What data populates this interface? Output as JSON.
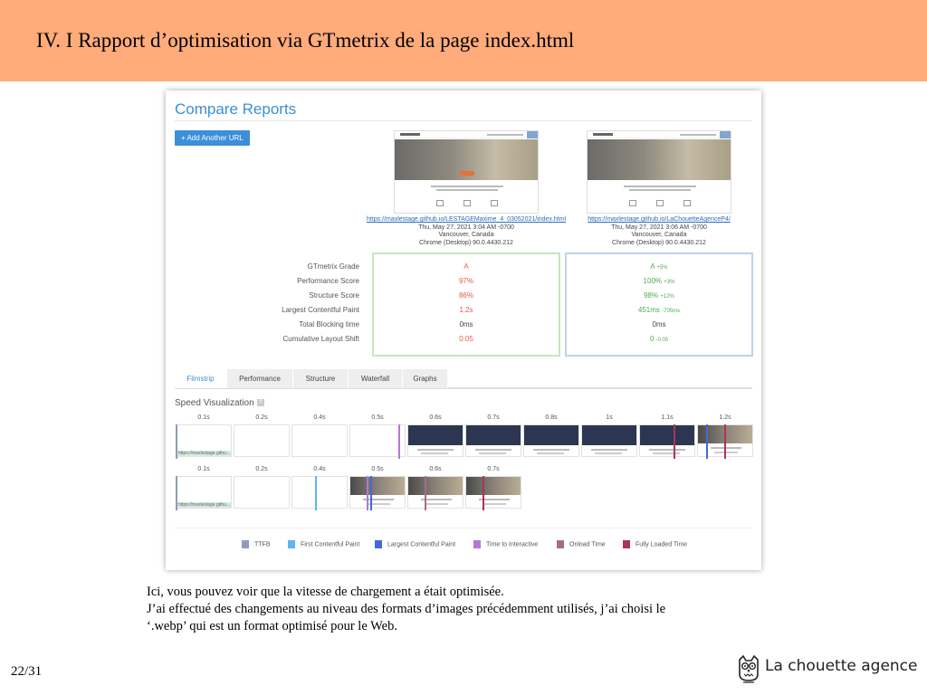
{
  "slide": {
    "title": "IV. I Rapport d’optimisation via GTmetrix de la page index.html",
    "description": [
      "Ici, vous pouvez voir que la vitesse de chargement a était optimisée.",
      "J’ai effectué des changements au niveau des formats d’images précédemment utilisés, j’ai choisi le",
      "‘.webp’ qui est un format optimisé pour le Web."
    ],
    "page_number": "22/31",
    "brand_name": "La chouette agence"
  },
  "report": {
    "title": "Compare Reports",
    "add_button": "+ Add Another URL",
    "left": {
      "url": "https://maxlestage.github.io/LESTAGEMaxime_4_03052021/index.html",
      "date": "Thu, May 27, 2021 3:04 AM -0700",
      "location": "Vancouver, Canada",
      "browser": "Chrome (Desktop) 90.0.4430.212"
    },
    "right": {
      "url": "https://maxlestage.github.io/LaChouetteAgenceP4/",
      "date": "Thu, May 27, 2021 3:06 AM -0700",
      "location": "Vancouver, Canada",
      "browser": "Chrome (Desktop) 90.0.4430.212"
    },
    "metric_labels": [
      "GTmetrix Grade",
      "Performance Score",
      "Structure Score",
      "Largest Contentful Paint",
      "Total Blocking time",
      "Cumulative Layout Shift"
    ],
    "left_values": [
      "A",
      "97%",
      "86%",
      "1.2s",
      "0ms",
      "0.05"
    ],
    "right_values": [
      "A",
      "100%",
      "98%",
      "451ms",
      "0ms",
      "0"
    ],
    "right_deltas": [
      "+5%",
      "+3%",
      "+12%",
      "-705ms",
      "",
      "-0.05"
    ],
    "tabs": [
      "Filmstrip",
      "Performance",
      "Structure",
      "Waterfall",
      "Graphs"
    ],
    "speed_title": "Speed Visualization",
    "speed_help": "?",
    "row1_times": [
      "0.1s",
      "0.2s",
      "0.4s",
      "0.5s",
      "0.6s",
      "0.7s",
      "0.8s",
      "1s",
      "1.1s",
      "1.2s"
    ],
    "row2_times": [
      "0.1s",
      "0.2s",
      "0.4s",
      "0.5s",
      "0.6s",
      "0.7s"
    ],
    "frame_label": "https://maxlestage.githu...",
    "legend": [
      {
        "label": "TTFB",
        "color": "#8f9bbd"
      },
      {
        "label": "First Contentful Paint",
        "color": "#5fb4ee"
      },
      {
        "label": "Largest Contentful Paint",
        "color": "#4169d8"
      },
      {
        "label": "Time to Interactive",
        "color": "#b378d6"
      },
      {
        "label": "Onload Time",
        "color": "#a66c8e"
      },
      {
        "label": "Fully Loaded Time",
        "color": "#a8355a"
      }
    ]
  }
}
